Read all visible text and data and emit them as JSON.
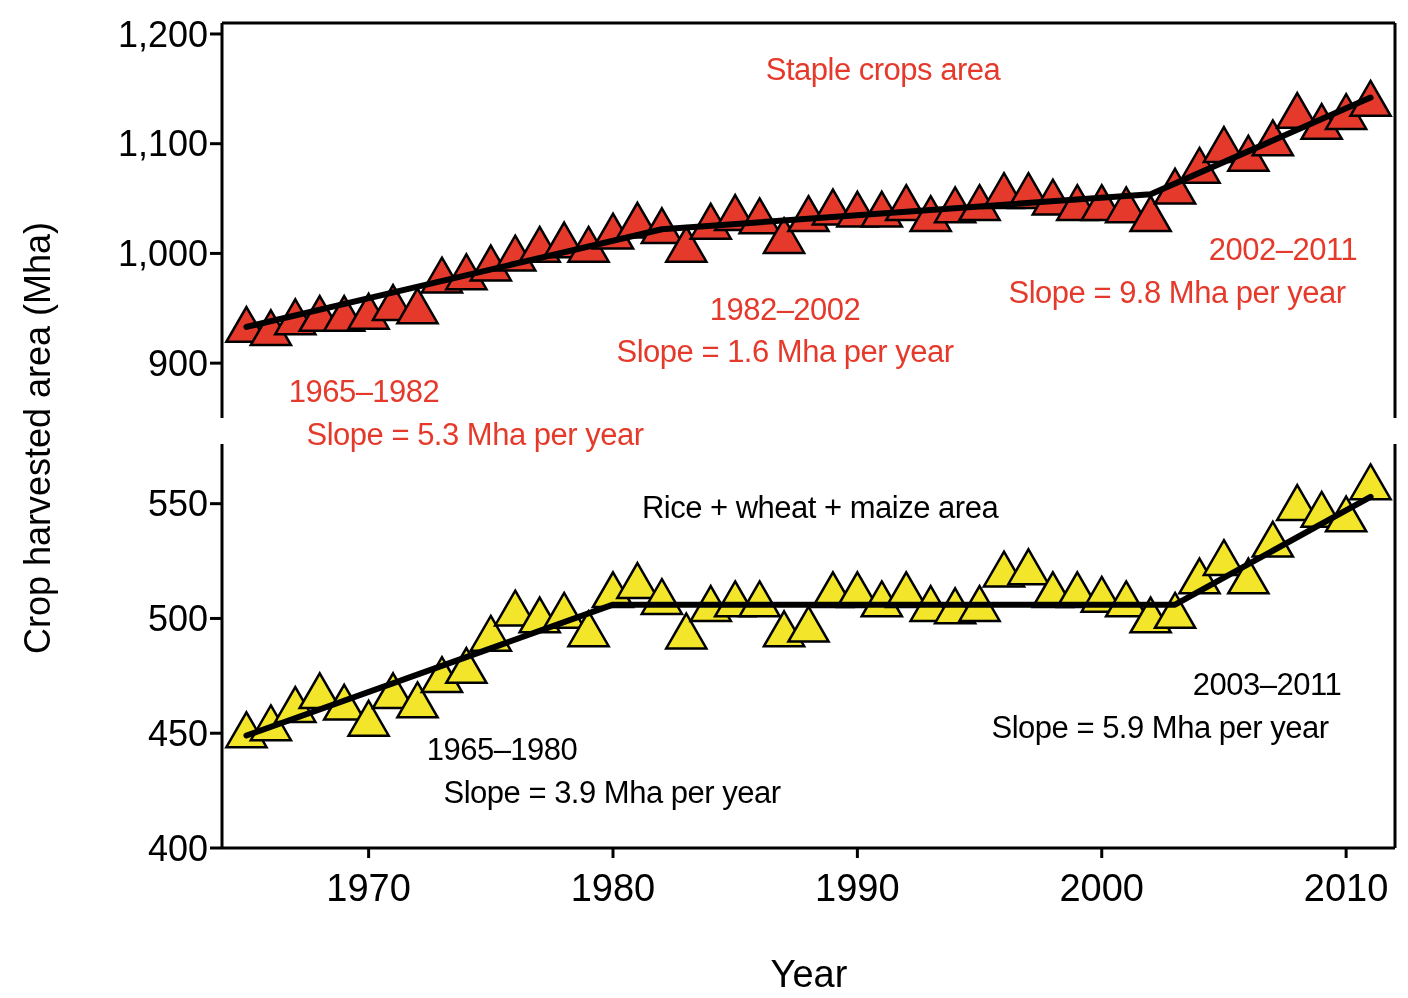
{
  "chart_data": [
    {
      "type": "scatter",
      "ylabel": "Crop harvested area (Mha)",
      "xlim": [
        1964,
        2012
      ],
      "xticks": [
        1970,
        1980,
        1990,
        2000,
        2010
      ],
      "ylim": [
        850,
        1210
      ],
      "yticks": [
        {
          "value": 900,
          "label": "900"
        },
        {
          "value": 1000,
          "label": "1,000"
        },
        {
          "value": 1100,
          "label": "1,100"
        },
        {
          "value": 1200,
          "label": "1,200"
        }
      ],
      "tick_labels": "y",
      "x": [
        1965,
        1966,
        1967,
        1968,
        1969,
        1970,
        1971,
        1972,
        1973,
        1974,
        1975,
        1976,
        1977,
        1978,
        1979,
        1980,
        1981,
        1982,
        1983,
        1984,
        1985,
        1986,
        1987,
        1988,
        1989,
        1990,
        1991,
        1992,
        1993,
        1994,
        1995,
        1996,
        1997,
        1998,
        1999,
        2000,
        2001,
        2002,
        2003,
        2004,
        2005,
        2006,
        2007,
        2008,
        2009,
        2010,
        2011
      ],
      "series": [
        {
          "color": "#e53a2b",
          "marker": "triangle",
          "values": [
            930,
            927,
            937,
            940,
            940,
            942,
            950,
            947,
            975,
            978,
            986,
            995,
            1003,
            1007,
            1003,
            1015,
            1025,
            1020,
            1003,
            1024,
            1032,
            1029,
            1011,
            1031,
            1037,
            1035,
            1035,
            1041,
            1031,
            1039,
            1041,
            1052,
            1052,
            1046,
            1041,
            1041,
            1039,
            1031,
            1056,
            1075,
            1094,
            1086,
            1100,
            1125,
            1115,
            1124,
            1136
          ]
        },
        {
          "type": "line",
          "color": "#000000",
          "marker": "none",
          "x": [
            1965,
            1982,
            2002,
            2011
          ],
          "values": [
            933,
            1022,
            1054,
            1142
          ]
        }
      ],
      "annotations": [
        "Staple crops area",
        "1965–1982",
        "Slope = 5.3 Mha per year",
        "1982–2002",
        "Slope = 1.6 Mha per year",
        "2002–2011",
        "Slope = 9.8 Mha per year"
      ]
    },
    {
      "type": "scatter",
      "xlabel": "Year",
      "xlim": [
        1964,
        2012
      ],
      "xticks": [
        1970,
        1980,
        1990,
        2000,
        2010
      ],
      "ylim": [
        400,
        576
      ],
      "yticks": [
        400,
        450,
        500,
        550
      ],
      "x": [
        1965,
        1966,
        1967,
        1968,
        1969,
        1970,
        1971,
        1972,
        1973,
        1974,
        1975,
        1976,
        1977,
        1978,
        1979,
        1980,
        1981,
        1982,
        1983,
        1984,
        1985,
        1986,
        1987,
        1988,
        1989,
        1990,
        1991,
        1992,
        1993,
        1994,
        1995,
        1996,
        1997,
        1998,
        1999,
        2000,
        2001,
        2002,
        2003,
        2004,
        2005,
        2006,
        2007,
        2008,
        2009,
        2010,
        2011
      ],
      "series": [
        {
          "color": "#f2e52a",
          "marker": "triangle",
          "values": [
            449,
            452,
            460,
            466,
            461,
            454,
            466,
            462,
            473,
            477,
            491,
            502,
            499,
            501,
            493,
            510,
            514,
            507,
            492,
            504,
            506,
            506,
            493,
            495,
            510,
            510,
            506,
            510,
            504,
            503,
            504,
            519,
            520,
            510,
            510,
            508,
            506,
            499,
            501,
            516,
            524,
            516,
            532,
            548,
            545,
            543,
            557
          ]
        },
        {
          "type": "line",
          "color": "#000000",
          "marker": "none",
          "x": [
            1965,
            1980,
            2003,
            2011
          ],
          "values": [
            449,
            506,
            506,
            553
          ]
        }
      ],
      "annotations": [
        "Rice + wheat + maize area",
        "1965–1980",
        "Slope = 3.9 Mha per year",
        "2003–2011",
        "Slope = 5.9 Mha per year"
      ]
    }
  ]
}
